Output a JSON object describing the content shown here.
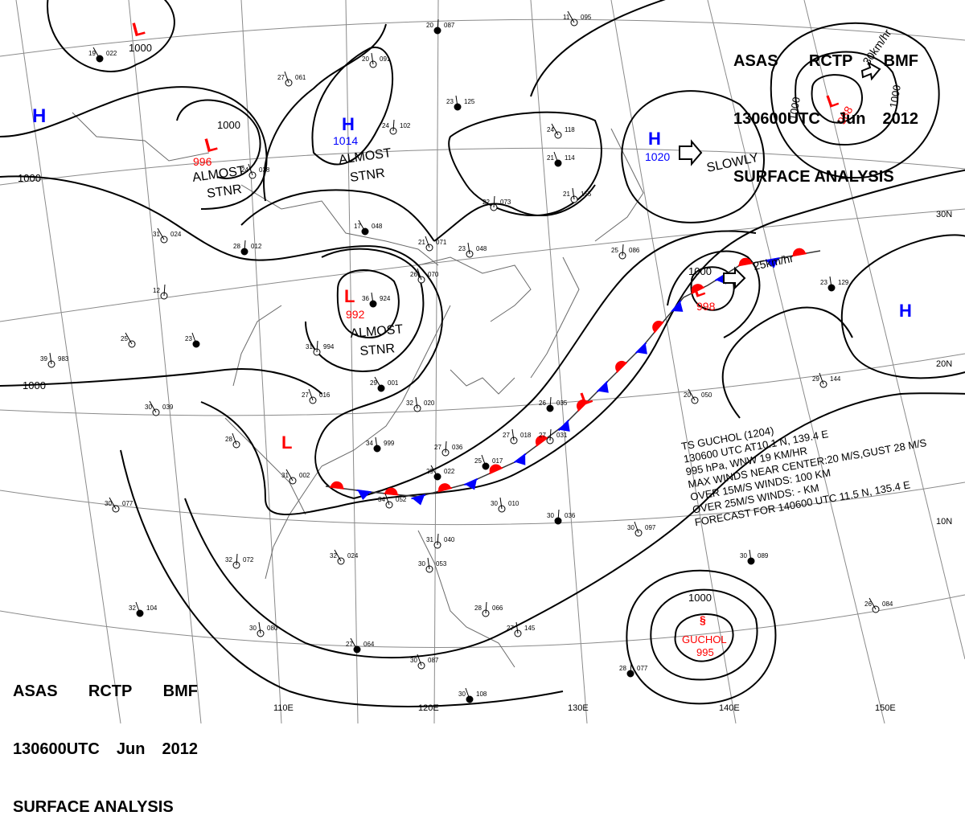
{
  "header": {
    "agency_line": [
      "ASAS",
      "RCTP",
      "BMF"
    ],
    "time_line": [
      "130600UTC",
      "Jun",
      "2012"
    ],
    "title": "SURFACE ANALYSIS"
  },
  "pressure_centers": [
    {
      "type": "H",
      "value": "",
      "color": "#0000ff"
    },
    {
      "type": "L",
      "value": "1000",
      "color": "#ff0000"
    },
    {
      "type": "L",
      "value": "996",
      "color": "#ff0000",
      "note": "ALMOST\nSTNR"
    },
    {
      "type": "H",
      "value": "1014",
      "color": "#0000ff",
      "note": "ALMOST\nSTNR"
    },
    {
      "type": "L",
      "value": "992",
      "color": "#ff0000",
      "note": "ALMOST\nSTNR"
    },
    {
      "type": "L",
      "value": "",
      "color": "#ff0000"
    },
    {
      "type": "H",
      "value": "1020",
      "color": "#0000ff",
      "note": "SLOWLY"
    },
    {
      "type": "L",
      "value": "988",
      "color": "#ff0000",
      "motion": "30km/hr"
    },
    {
      "type": "L",
      "value": "998",
      "color": "#ff0000",
      "motion": "25km/hr"
    },
    {
      "type": "H",
      "value": "",
      "color": "#0000ff"
    },
    {
      "type": "L",
      "value": "",
      "color": "#ff0000"
    },
    {
      "type": "TS",
      "name": "GUCHOL",
      "value": "995",
      "color": "#ff0000"
    }
  ],
  "isobar_labels": [
    "1000",
    "1000",
    "1000",
    "1000",
    "1000",
    "1000",
    "1000",
    "1000"
  ],
  "storm_info": {
    "lines": [
      "TS  GUCHOL  (1204)",
      "130600 UTC  AT10.1 N, 139.4 E",
      "995 hPa, WNW  19 KM/HR",
      "MAX WINDS NEAR CENTER:20 M/S,GUST 28 M/S",
      "OVER 15M/S WINDS: 100 KM",
      "OVER 25M/S WINDS: - KM",
      "FORECAST FOR 140600 UTC 11.5 N, 135.4 E"
    ]
  },
  "longitude_labels": [
    "110E",
    "120E",
    "130E",
    "140E",
    "150E"
  ],
  "latitude_labels": [
    "30N",
    "20N",
    "10N"
  ],
  "colors": {
    "high": "#0000ff",
    "low": "#ff0000",
    "front_cold": "#0000ff",
    "front_warm": "#ff0000",
    "isobar": "#000000",
    "grid": "#888888",
    "coast": "#666666"
  },
  "station_plots": [
    {
      "t": "19",
      "p": "022"
    },
    {
      "t": "27",
      "p": "061"
    },
    {
      "t": "20",
      "p": "091"
    },
    {
      "t": "20",
      "p": "087"
    },
    {
      "t": "11",
      "p": "095"
    },
    {
      "t": "24",
      "p": "038"
    },
    {
      "t": "23",
      "p": "125"
    },
    {
      "t": "24",
      "p": "102"
    },
    {
      "t": "24",
      "p": "118"
    },
    {
      "t": "21",
      "p": "114"
    },
    {
      "t": "21",
      "p": "155"
    },
    {
      "t": "22",
      "p": "073"
    },
    {
      "t": "17",
      "p": "048"
    },
    {
      "t": "21",
      "p": "071"
    },
    {
      "t": "23",
      "p": "048"
    },
    {
      "t": "28",
      "p": "012"
    },
    {
      "t": "31",
      "p": "024"
    },
    {
      "t": "26",
      "p": "070"
    },
    {
      "t": "36",
      "p": "924"
    },
    {
      "t": "12",
      "p": ""
    },
    {
      "t": "25",
      "p": ""
    },
    {
      "t": "23",
      "p": ""
    },
    {
      "t": "39",
      "p": "983"
    },
    {
      "t": "31",
      "p": "994"
    },
    {
      "t": "29",
      "p": "001"
    },
    {
      "t": "27",
      "p": "016"
    },
    {
      "t": "32",
      "p": "020"
    },
    {
      "t": "26",
      "p": "035"
    },
    {
      "t": "30",
      "p": "039"
    },
    {
      "t": "28",
      "p": ""
    },
    {
      "t": "34",
      "p": "999"
    },
    {
      "t": "27",
      "p": "036"
    },
    {
      "t": "31",
      "p": "002"
    },
    {
      "t": "25",
      "p": "017"
    },
    {
      "t": "27",
      "p": "018"
    },
    {
      "t": "27",
      "p": "031"
    },
    {
      "t": "29",
      "p": "022"
    },
    {
      "t": "34",
      "p": "052"
    },
    {
      "t": "30",
      "p": "010"
    },
    {
      "t": "30",
      "p": "036"
    },
    {
      "t": "30",
      "p": "077"
    },
    {
      "t": "30",
      "p": "097"
    },
    {
      "t": "30",
      "p": "089"
    },
    {
      "t": "32",
      "p": "072"
    },
    {
      "t": "32",
      "p": "024"
    },
    {
      "t": "32",
      "p": "104"
    },
    {
      "t": "30",
      "p": "080"
    },
    {
      "t": "28",
      "p": "066"
    },
    {
      "t": "27",
      "p": "064"
    },
    {
      "t": "30",
      "p": "087"
    },
    {
      "t": "27",
      "p": "145"
    },
    {
      "t": "28",
      "p": "077"
    },
    {
      "t": "26",
      "p": "084"
    },
    {
      "t": "29",
      "p": "144"
    },
    {
      "t": "23",
      "p": "129"
    },
    {
      "t": "25",
      "p": "086"
    },
    {
      "t": "20",
      "p": "050"
    },
    {
      "t": "30",
      "p": "108"
    },
    {
      "t": "30",
      "p": "053"
    },
    {
      "t": "31",
      "p": "040"
    }
  ]
}
